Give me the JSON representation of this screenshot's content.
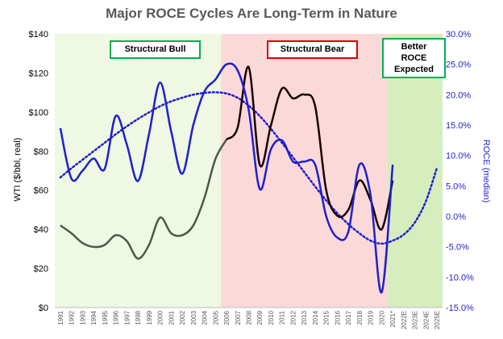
{
  "chart_data": {
    "type": "line",
    "title": "Major ROCE Cycles Are Long-Term in Nature",
    "ylabel": "WTI ($/bbl, real)",
    "y2label": "ROCE (median)",
    "ylim": [
      0,
      140
    ],
    "y2lim": [
      -15,
      30
    ],
    "y_ticks": [
      "$0",
      "$20",
      "$40",
      "$60",
      "$80",
      "$100",
      "$120",
      "$140"
    ],
    "y2_ticks": [
      "-15.0%",
      "-10.0%",
      "-5.0%",
      "0.0%",
      "5.0%",
      "10.0%",
      "15.0%",
      "20.0%",
      "25.0%",
      "30.0%"
    ],
    "categories": [
      "1991",
      "1992",
      "1993",
      "1994",
      "1995",
      "1996",
      "1997",
      "1998",
      "1999",
      "2000",
      "2001",
      "2002",
      "2003",
      "2004",
      "2005",
      "2006",
      "2007",
      "2008",
      "2009",
      "2010",
      "2011",
      "2012",
      "2013",
      "2014",
      "2015",
      "2016",
      "2017",
      "2018",
      "2019",
      "2020",
      "2021*",
      "2022E",
      "2023E",
      "2024E",
      "2025E"
    ],
    "regions": [
      {
        "label": "Structural Bull",
        "color": "#eef8e2",
        "from": "1991",
        "to": "2005"
      },
      {
        "label": "Structural Bear",
        "color": "#fbd9d9",
        "from": "2006",
        "to": "2020"
      },
      {
        "label": "Better ROCE Expected",
        "color": "#d6edbd",
        "from": "2021*",
        "to": "2025E"
      }
    ],
    "series": [
      {
        "axis": "left",
        "style": "solid",
        "color_bull": "#4a5a48",
        "color_bear": "#1a0000",
        "values": [
          42,
          38,
          33,
          31,
          32,
          37,
          34,
          25,
          32,
          46,
          38,
          37,
          42,
          56,
          76,
          86,
          92,
          123,
          73,
          93,
          112,
          107,
          109,
          103,
          60,
          47,
          50,
          65,
          55,
          40,
          65,
          null,
          null,
          null,
          null
        ]
      },
      {
        "axis": "right",
        "style": "solid",
        "color": "#1f1fcf",
        "values": [
          14.5,
          6.2,
          7.5,
          9.5,
          7.8,
          16.5,
          11.8,
          5.8,
          13.5,
          22.0,
          14.0,
          7.0,
          15.0,
          20.5,
          22.5,
          25.0,
          24.0,
          17.5,
          4.5,
          11.0,
          12.5,
          9.0,
          9.0,
          8.5,
          0.0,
          -3.5,
          -2.5,
          8.5,
          3.5,
          -12.5,
          8.5,
          null,
          null,
          null,
          null
        ]
      },
      {
        "axis": "right",
        "style": "dotted",
        "color": "#1f1fcf",
        "trend": true,
        "values": [
          6.4,
          7.9,
          9.3,
          10.7,
          12.1,
          13.5,
          14.8,
          16.0,
          17.1,
          18.1,
          18.9,
          19.5,
          20.0,
          20.3,
          20.4,
          20.2,
          19.5,
          18.2,
          16.5,
          14.4,
          12.1,
          9.7,
          7.3,
          4.9,
          2.6,
          0.5,
          -1.3,
          -2.8,
          -4.0,
          -4.5,
          -4.0,
          -3.0,
          -1.0,
          2.5,
          8.0
        ]
      }
    ],
    "labels": {
      "bull": "Structural Bull",
      "bear": "Structural Bear",
      "better": [
        "Better",
        "ROCE",
        "Expected"
      ]
    }
  }
}
